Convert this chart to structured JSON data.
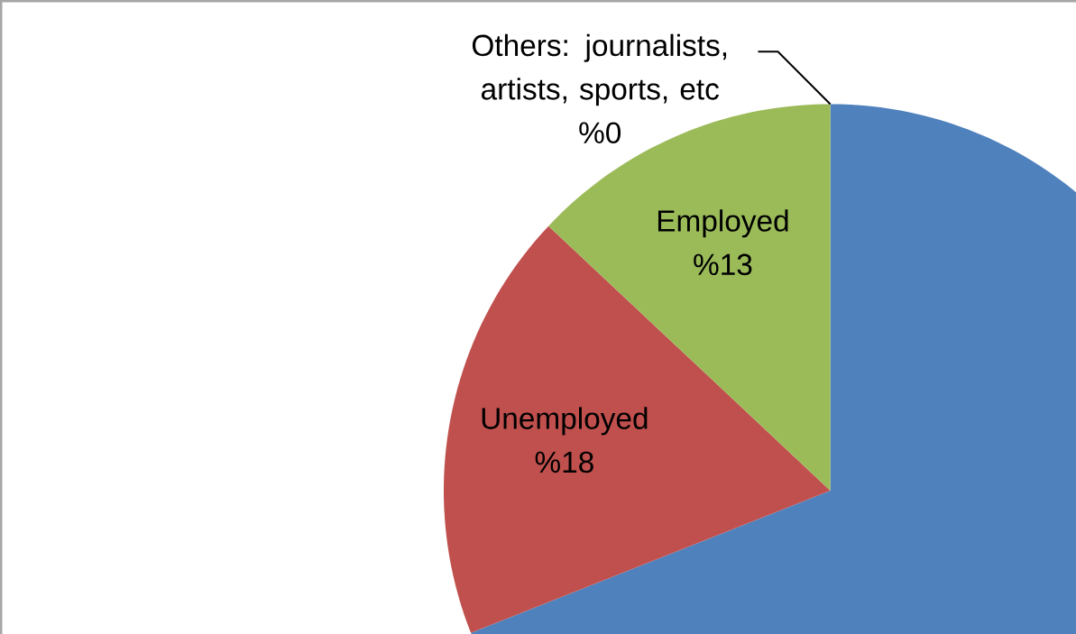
{
  "chart_data": {
    "type": "pie",
    "categories": [
      null,
      "Unemployed",
      "Employed",
      "Others: journalists, artists, sports, etc"
    ],
    "values": [
      69,
      18,
      13,
      0
    ],
    "colors": [
      "#4f81bd",
      "#c0504d",
      "#9bbb59",
      "#8064a2"
    ],
    "value_labels": [
      null,
      "%18",
      "%13",
      "%0"
    ]
  }
}
